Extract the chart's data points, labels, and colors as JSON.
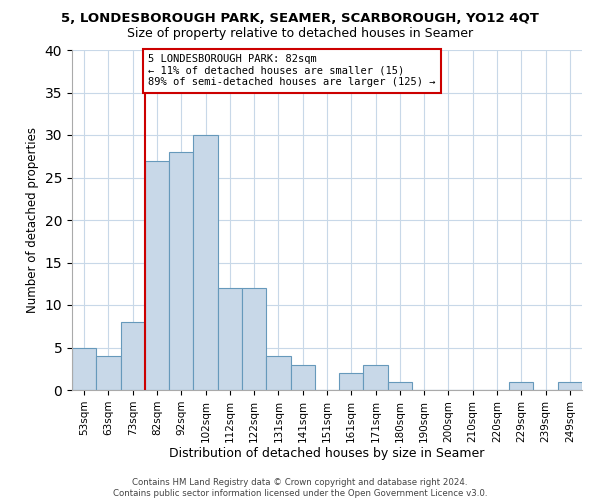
{
  "title": "5, LONDESBOROUGH PARK, SEAMER, SCARBOROUGH, YO12 4QT",
  "subtitle": "Size of property relative to detached houses in Seamer",
  "xlabel": "Distribution of detached houses by size in Seamer",
  "ylabel": "Number of detached properties",
  "bar_labels": [
    "53sqm",
    "63sqm",
    "73sqm",
    "82sqm",
    "92sqm",
    "102sqm",
    "112sqm",
    "122sqm",
    "131sqm",
    "141sqm",
    "151sqm",
    "161sqm",
    "171sqm",
    "180sqm",
    "190sqm",
    "200sqm",
    "210sqm",
    "220sqm",
    "229sqm",
    "239sqm",
    "249sqm"
  ],
  "bar_values": [
    5,
    4,
    8,
    27,
    28,
    30,
    12,
    12,
    4,
    3,
    0,
    2,
    3,
    1,
    0,
    0,
    0,
    0,
    1,
    0,
    1
  ],
  "bar_color": "#c8d8e8",
  "bar_edge_color": "#6699bb",
  "vline_index": 3,
  "vline_color": "#cc0000",
  "ylim": [
    0,
    40
  ],
  "yticks": [
    0,
    5,
    10,
    15,
    20,
    25,
    30,
    35,
    40
  ],
  "annotation_line1": "5 LONDESBOROUGH PARK: 82sqm",
  "annotation_line2": "← 11% of detached houses are smaller (15)",
  "annotation_line3": "89% of semi-detached houses are larger (125) →",
  "annotation_box_color": "#ffffff",
  "annotation_border_color": "#cc0000",
  "footer_line1": "Contains HM Land Registry data © Crown copyright and database right 2024.",
  "footer_line2": "Contains public sector information licensed under the Open Government Licence v3.0.",
  "bg_color": "#ffffff",
  "grid_color": "#c8d8e8"
}
